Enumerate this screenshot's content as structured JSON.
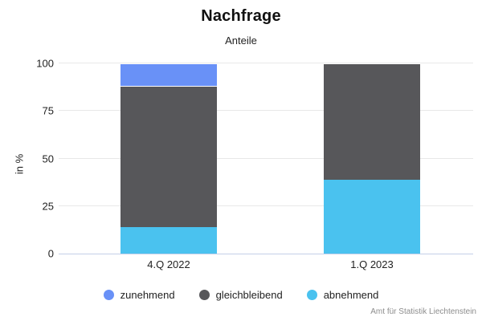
{
  "figure": {
    "title": "Nachfrage",
    "subtitle": "Anteile",
    "source": "Amt für Statistik Liechtenstein"
  },
  "chart_data": {
    "type": "bar",
    "stacked": true,
    "orientation": "vertical",
    "title": "Nachfrage",
    "subtitle": "Anteile",
    "xlabel": "",
    "ylabel": "in %",
    "categories": [
      "4.Q 2022",
      "1.Q 2023"
    ],
    "series": [
      {
        "name": "zunehmend",
        "color": "#6991f7",
        "values": [
          12,
          0
        ]
      },
      {
        "name": "gleichbleibend",
        "color": "#57575a",
        "values": [
          74,
          61
        ]
      },
      {
        "name": "abnehmend",
        "color": "#4ac2ef",
        "values": [
          14,
          39
        ]
      }
    ],
    "stack_order_bottom_to_top": [
      "abnehmend",
      "gleichbleibend",
      "zunehmend"
    ],
    "ylim": [
      0,
      100
    ],
    "yticks": [
      0,
      25,
      50,
      75,
      100
    ],
    "grid": true,
    "legend_position": "bottom",
    "colors": {
      "gridline": "#e8e8e8",
      "axis_line": "#c3cfe8",
      "text": "#222222",
      "source_text": "#8d8d8d"
    }
  }
}
